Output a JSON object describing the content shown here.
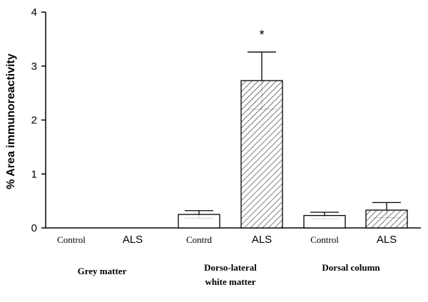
{
  "chart_data": {
    "type": "bar",
    "ylabel": "% Area immunoreactivity",
    "ylim": [
      0,
      4
    ],
    "yticks": [
      0,
      1,
      2,
      3,
      4
    ],
    "grid": false,
    "categories": [
      "Control",
      "ALS",
      "Contrd",
      "ALS",
      "Control",
      "ALS"
    ],
    "groups": [
      {
        "label_lines": [
          "Grey matter"
        ]
      },
      {
        "label_lines": [
          "Dorso-lateral",
          "white matter"
        ]
      },
      {
        "label_lines": [
          "Dorsal column"
        ]
      }
    ],
    "bars": [
      {
        "label": "Control",
        "value": 0,
        "error": 0,
        "pattern": "none",
        "visible": false
      },
      {
        "label": "ALS",
        "value": 0,
        "error": 0,
        "pattern": "none",
        "visible": false
      },
      {
        "label": "Contrd",
        "value": 0.25,
        "error": 0.07,
        "pattern": "none",
        "visible": true
      },
      {
        "label": "ALS",
        "value": 2.73,
        "error": 0.53,
        "pattern": "hatched",
        "visible": true,
        "annotation": "*"
      },
      {
        "label": "Control",
        "value": 0.23,
        "error": 0.06,
        "pattern": "none",
        "visible": true
      },
      {
        "label": "ALS",
        "value": 0.33,
        "error": 0.14,
        "pattern": "hatched",
        "visible": true
      }
    ],
    "colors": {
      "bar_fill": "#ffffff",
      "stroke": "#000000"
    }
  }
}
